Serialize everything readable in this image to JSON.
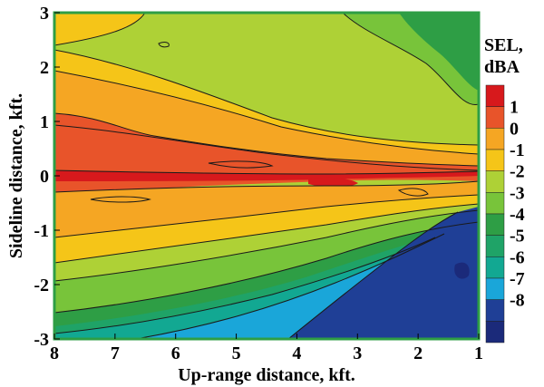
{
  "chart_data": {
    "type": "heatmap",
    "title": "",
    "xlabel": "Up-range distance, kft.",
    "ylabel": "Sideline distance, kft.",
    "xlim": [
      8,
      1
    ],
    "ylim": [
      -3,
      3
    ],
    "x_ticks": [
      "8",
      "7",
      "6",
      "5",
      "4",
      "3",
      "2",
      "1"
    ],
    "y_ticks": [
      "3",
      "2",
      "1",
      "0",
      "-1",
      "-2",
      "-3"
    ],
    "legend_title_line1": "SEL,",
    "legend_title_line2": "dBA",
    "legend_levels": [
      "1",
      "0",
      "-1",
      "-2",
      "-3",
      "-4",
      "-5",
      "-6",
      "-7",
      "-8"
    ],
    "legend_placement": "right",
    "colorbar": [
      "#d7191c",
      "#e8542a",
      "#f5a623",
      "#f5c518",
      "#aed136",
      "#78c43a",
      "#2e9e45",
      "#1fa367",
      "#12a892",
      "#1aa6d9",
      "#1f3f96",
      "#1b2a7a"
    ],
    "plot_border_color": "#2e9e45",
    "grid": false
  }
}
